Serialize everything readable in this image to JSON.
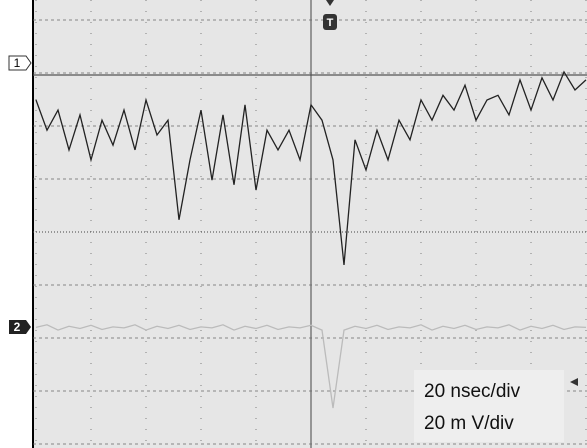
{
  "chart_data": {
    "type": "line",
    "x": [
      0,
      0.2,
      0.4,
      0.6,
      0.8,
      1,
      1.2,
      1.4,
      1.6,
      1.8,
      2,
      2.2,
      2.4,
      2.6,
      2.8,
      3,
      3.2,
      3.4,
      3.6,
      3.8,
      4,
      4.2,
      4.4,
      4.6,
      4.8,
      5,
      5.2,
      5.4,
      5.6,
      5.8,
      6,
      6.2,
      6.4,
      6.6,
      6.8,
      7,
      7.2,
      7.4,
      7.6,
      7.8,
      8,
      8.2,
      8.4,
      8.6,
      8.8,
      9,
      9.2,
      9.4,
      9.6,
      9.8,
      10
    ],
    "series": [
      {
        "name": "1",
        "color": "#222222",
        "values": [
          2.49,
          1.92,
          2.3,
          1.55,
          2.21,
          1.36,
          2.11,
          1.64,
          2.3,
          1.55,
          2.49,
          1.83,
          2.11,
          0.23,
          1.36,
          2.3,
          0.98,
          2.21,
          0.89,
          2.4,
          0.79,
          1.92,
          1.55,
          1.92,
          1.36,
          2.4,
          2.11,
          1.36,
          -0.62,
          1.74,
          1.17,
          1.92,
          1.36,
          2.11,
          1.74,
          2.49,
          2.11,
          2.58,
          2.3,
          2.77,
          2.11,
          2.49,
          2.58,
          2.21,
          2.87,
          2.3,
          2.91,
          2.49,
          3.02,
          2.68,
          2.87
        ]
      },
      {
        "name": "2",
        "color": "#bbbbbb",
        "values": [
          -1.8,
          -1.75,
          -1.85,
          -1.78,
          -1.82,
          -1.76,
          -1.84,
          -1.79,
          -1.81,
          -1.75,
          -1.85,
          -1.78,
          -1.82,
          -1.76,
          -1.84,
          -1.79,
          -1.81,
          -1.75,
          -1.85,
          -1.78,
          -1.82,
          -1.76,
          -1.84,
          -1.79,
          -1.81,
          -1.76,
          -1.85,
          -3.32,
          -1.85,
          -1.78,
          -1.82,
          -1.76,
          -1.84,
          -1.79,
          -1.81,
          -1.75,
          -1.85,
          -1.78,
          -1.82,
          -1.76,
          -1.84,
          -1.79,
          -1.81,
          -1.75,
          -1.85,
          -1.78,
          -1.82,
          -1.76,
          -1.84,
          -1.79,
          -1.8
        ]
      }
    ],
    "trigger_label": "T",
    "annotations": [
      "20 nsec/div",
      "20 m V/div"
    ],
    "xlim": [
      0,
      10
    ],
    "ylim": [
      -4,
      4
    ],
    "xticks": [
      0,
      1,
      2,
      3,
      4,
      5,
      6,
      7,
      8,
      9,
      10
    ],
    "yticks": [
      -4,
      -3,
      -2,
      -1,
      0,
      1,
      2,
      3,
      4
    ],
    "grid": true
  }
}
